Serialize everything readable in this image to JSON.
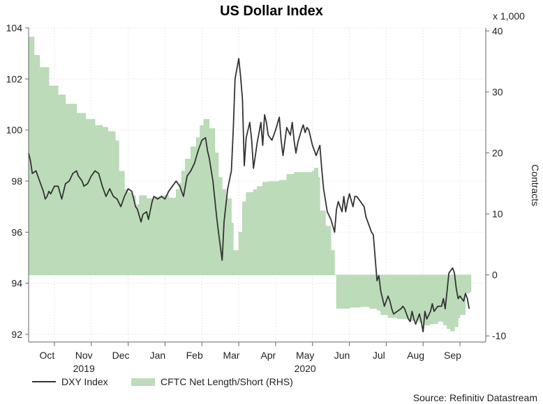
{
  "chart_data": {
    "type": "line",
    "title": "US Dollar Index",
    "right_axis_multiplier": "x 1,000",
    "right_axis_label": "Contracts",
    "source": "Source: Refinitiv Datastream",
    "left_ylim": [
      91.7,
      104
    ],
    "left_ticks": [
      "92",
      "94",
      "96",
      "98",
      "100",
      "102",
      "104"
    ],
    "right_ylim": [
      -11,
      40.5
    ],
    "right_ticks": [
      "-10",
      "0",
      "10",
      "20",
      "30",
      "40"
    ],
    "xlim": [
      0,
      12.4
    ],
    "month_ticks": [
      {
        "label": "Oct",
        "pos": 0.5
      },
      {
        "label": "Nov",
        "pos": 1.5
      },
      {
        "label": "Dec",
        "pos": 2.5
      },
      {
        "label": "Jan",
        "pos": 3.5
      },
      {
        "label": "Feb",
        "pos": 4.5
      },
      {
        "label": "Mar",
        "pos": 5.5
      },
      {
        "label": "Apr",
        "pos": 6.5
      },
      {
        "label": "May",
        "pos": 7.5
      },
      {
        "label": "Jun",
        "pos": 8.5
      },
      {
        "label": "Jul",
        "pos": 9.5
      },
      {
        "label": "Aug",
        "pos": 10.5
      },
      {
        "label": "Sep",
        "pos": 11.5
      }
    ],
    "month_boundaries": [
      0.7,
      1.7,
      2.7,
      3.7,
      4.7,
      5.7,
      6.7,
      7.7,
      8.7,
      9.7,
      10.7,
      11.7
    ],
    "year_labels": [
      {
        "label": "2019",
        "pos": 1.5
      },
      {
        "label": "2020",
        "pos": 7.5
      }
    ],
    "series": [
      {
        "name": "DXY Index",
        "axis": "left",
        "color": "#333333",
        "points": [
          [
            0,
            99.1
          ],
          [
            0.05,
            98.8
          ],
          [
            0.1,
            98.3
          ],
          [
            0.2,
            98.4
          ],
          [
            0.3,
            98.0
          ],
          [
            0.4,
            97.6
          ],
          [
            0.45,
            97.3
          ],
          [
            0.5,
            97.4
          ],
          [
            0.55,
            97.6
          ],
          [
            0.6,
            97.5
          ],
          [
            0.7,
            97.8
          ],
          [
            0.8,
            97.8
          ],
          [
            0.9,
            97.3
          ],
          [
            1.0,
            97.9
          ],
          [
            1.1,
            98.0
          ],
          [
            1.2,
            98.3
          ],
          [
            1.3,
            98.4
          ],
          [
            1.35,
            98.2
          ],
          [
            1.4,
            98.1
          ],
          [
            1.45,
            98.0
          ],
          [
            1.5,
            97.8
          ],
          [
            1.6,
            97.9
          ],
          [
            1.7,
            98.2
          ],
          [
            1.8,
            98.4
          ],
          [
            1.9,
            98.3
          ],
          [
            2.0,
            97.8
          ],
          [
            2.1,
            97.4
          ],
          [
            2.2,
            97.7
          ],
          [
            2.3,
            97.4
          ],
          [
            2.4,
            97.3
          ],
          [
            2.5,
            97.0
          ],
          [
            2.6,
            97.4
          ],
          [
            2.7,
            97.7
          ],
          [
            2.8,
            97.6
          ],
          [
            2.9,
            97.0
          ],
          [
            2.95,
            96.9
          ],
          [
            3.05,
            96.4
          ],
          [
            3.1,
            96.7
          ],
          [
            3.2,
            96.8
          ],
          [
            3.25,
            96.5
          ],
          [
            3.35,
            97.2
          ],
          [
            3.4,
            97.4
          ],
          [
            3.5,
            97.3
          ],
          [
            3.6,
            97.4
          ],
          [
            3.7,
            97.3
          ],
          [
            3.8,
            97.6
          ],
          [
            3.9,
            97.8
          ],
          [
            4.0,
            98.0
          ],
          [
            4.1,
            97.8
          ],
          [
            4.2,
            97.4
          ],
          [
            4.3,
            98.2
          ],
          [
            4.4,
            98.4
          ],
          [
            4.5,
            98.7
          ],
          [
            4.6,
            99.2
          ],
          [
            4.7,
            99.6
          ],
          [
            4.8,
            99.7
          ],
          [
            4.85,
            99.2
          ],
          [
            4.9,
            98.9
          ],
          [
            5.0,
            98.0
          ],
          [
            5.1,
            96.6
          ],
          [
            5.15,
            96.0
          ],
          [
            5.25,
            94.9
          ],
          [
            5.3,
            96.4
          ],
          [
            5.4,
            97.7
          ],
          [
            5.5,
            98.4
          ],
          [
            5.55,
            100.0
          ],
          [
            5.6,
            102.0
          ],
          [
            5.7,
            102.8
          ],
          [
            5.75,
            102.1
          ],
          [
            5.8,
            101.2
          ],
          [
            5.85,
            98.6
          ],
          [
            5.9,
            99.7
          ],
          [
            6.0,
            100.3
          ],
          [
            6.05,
            99.6
          ],
          [
            6.1,
            98.5
          ],
          [
            6.2,
            99.5
          ],
          [
            6.3,
            100.3
          ],
          [
            6.35,
            99.4
          ],
          [
            6.4,
            100.6
          ],
          [
            6.45,
            100.3
          ],
          [
            6.5,
            99.8
          ],
          [
            6.6,
            99.6
          ],
          [
            6.7,
            100.0
          ],
          [
            6.8,
            100.5
          ],
          [
            6.85,
            99.6
          ],
          [
            6.9,
            99.0
          ],
          [
            7.0,
            100.1
          ],
          [
            7.1,
            99.8
          ],
          [
            7.15,
            100.3
          ],
          [
            7.2,
            99.6
          ],
          [
            7.25,
            99.1
          ],
          [
            7.3,
            99.5
          ],
          [
            7.4,
            100.0
          ],
          [
            7.45,
            100.2
          ],
          [
            7.5,
            99.9
          ],
          [
            7.55,
            100.1
          ],
          [
            7.6,
            100.0
          ],
          [
            7.7,
            99.4
          ],
          [
            7.8,
            99.0
          ],
          [
            7.9,
            99.4
          ],
          [
            7.95,
            98.5
          ],
          [
            8.0,
            97.7
          ],
          [
            8.1,
            96.8
          ],
          [
            8.2,
            96.5
          ],
          [
            8.3,
            96.0
          ],
          [
            8.35,
            96.9
          ],
          [
            8.4,
            97.2
          ],
          [
            8.5,
            96.8
          ],
          [
            8.55,
            97.4
          ],
          [
            8.6,
            96.8
          ],
          [
            8.65,
            97.2
          ],
          [
            8.7,
            97.5
          ],
          [
            8.8,
            97.0
          ],
          [
            8.85,
            97.4
          ],
          [
            8.9,
            97.4
          ],
          [
            9.0,
            97.2
          ],
          [
            9.1,
            97.0
          ],
          [
            9.15,
            96.6
          ],
          [
            9.2,
            96.4
          ],
          [
            9.3,
            96.0
          ],
          [
            9.35,
            95.9
          ],
          [
            9.4,
            95.0
          ],
          [
            9.45,
            94.1
          ],
          [
            9.5,
            94.3
          ],
          [
            9.55,
            93.7
          ],
          [
            9.6,
            93.4
          ],
          [
            9.65,
            93.1
          ],
          [
            9.75,
            93.5
          ],
          [
            9.8,
            93.3
          ],
          [
            9.85,
            93.0
          ],
          [
            9.9,
            92.8
          ],
          [
            10.0,
            92.9
          ],
          [
            10.1,
            93.0
          ],
          [
            10.15,
            93.1
          ],
          [
            10.2,
            93.0
          ],
          [
            10.25,
            92.8
          ],
          [
            10.3,
            92.6
          ],
          [
            10.35,
            92.5
          ],
          [
            10.4,
            92.9
          ],
          [
            10.45,
            92.6
          ],
          [
            10.5,
            92.4
          ],
          [
            10.6,
            92.8
          ],
          [
            10.65,
            92.5
          ],
          [
            10.7,
            92.1
          ],
          [
            10.75,
            92.9
          ],
          [
            10.8,
            92.6
          ],
          [
            10.9,
            92.9
          ],
          [
            10.95,
            93.2
          ],
          [
            11.0,
            92.9
          ],
          [
            11.1,
            93.1
          ],
          [
            11.2,
            93.1
          ],
          [
            11.25,
            93.4
          ],
          [
            11.3,
            93.0
          ],
          [
            11.4,
            94.4
          ],
          [
            11.5,
            94.6
          ],
          [
            11.55,
            94.4
          ],
          [
            11.6,
            93.8
          ],
          [
            11.65,
            93.4
          ],
          [
            11.7,
            93.5
          ],
          [
            11.8,
            93.3
          ],
          [
            11.85,
            93.6
          ],
          [
            11.9,
            93.4
          ],
          [
            11.95,
            93.0
          ]
        ]
      },
      {
        "name": "CFTC Net Length/Short (RHS)",
        "axis": "right",
        "color": "#bcdcb9",
        "points": [
          [
            0,
            39
          ],
          [
            0.15,
            36
          ],
          [
            0.3,
            34
          ],
          [
            0.55,
            31
          ],
          [
            0.8,
            29.5
          ],
          [
            1.0,
            28
          ],
          [
            1.3,
            26.5
          ],
          [
            1.55,
            25.5
          ],
          [
            1.8,
            24.5
          ],
          [
            2.0,
            24.2
          ],
          [
            2.15,
            23.5
          ],
          [
            2.35,
            22
          ],
          [
            2.45,
            17
          ],
          [
            2.6,
            14
          ],
          [
            2.7,
            13.5
          ],
          [
            2.8,
            13
          ],
          [
            2.9,
            11.5
          ],
          [
            3.0,
            13
          ],
          [
            3.2,
            12.5
          ],
          [
            3.4,
            12.8
          ],
          [
            3.6,
            13
          ],
          [
            3.8,
            12.6
          ],
          [
            4.0,
            14
          ],
          [
            4.1,
            15
          ],
          [
            4.15,
            17
          ],
          [
            4.25,
            19
          ],
          [
            4.4,
            21
          ],
          [
            4.55,
            22.5
          ],
          [
            4.65,
            24.5
          ],
          [
            4.75,
            25.5
          ],
          [
            4.9,
            24
          ],
          [
            5.05,
            20
          ],
          [
            5.15,
            16
          ],
          [
            5.25,
            14
          ],
          [
            5.35,
            12.5
          ],
          [
            5.5,
            8.5
          ],
          [
            5.55,
            4
          ],
          [
            5.7,
            7
          ],
          [
            5.8,
            12
          ],
          [
            5.9,
            13.5
          ],
          [
            6.1,
            14
          ],
          [
            6.2,
            14.5
          ],
          [
            6.35,
            15.2
          ],
          [
            6.5,
            15.3
          ],
          [
            6.8,
            15.5
          ],
          [
            7.0,
            16.5
          ],
          [
            7.2,
            16.8
          ],
          [
            7.6,
            16.8
          ],
          [
            7.7,
            17
          ],
          [
            7.75,
            17.5
          ],
          [
            7.85,
            16
          ],
          [
            7.9,
            10.5
          ],
          [
            8.05,
            8
          ],
          [
            8.2,
            4
          ],
          [
            8.3,
            0
          ],
          [
            8.35,
            -5.5
          ],
          [
            8.6,
            -5.5
          ],
          [
            8.7,
            -5.3
          ],
          [
            9.0,
            -5.2
          ],
          [
            9.25,
            -5.5
          ],
          [
            9.45,
            -5.8
          ],
          [
            9.55,
            -6.5
          ],
          [
            9.75,
            -7
          ],
          [
            10.0,
            -7.2
          ],
          [
            10.3,
            -7.5
          ],
          [
            10.6,
            -7.8
          ],
          [
            10.7,
            -8.2
          ],
          [
            10.9,
            -8
          ],
          [
            11.1,
            -7.6
          ],
          [
            11.25,
            -8.2
          ],
          [
            11.35,
            -8.8
          ],
          [
            11.45,
            -9.2
          ],
          [
            11.55,
            -8.5
          ],
          [
            11.65,
            -7
          ],
          [
            11.7,
            -6.5
          ],
          [
            11.85,
            -3
          ],
          [
            11.95,
            -2.8
          ]
        ]
      }
    ]
  }
}
